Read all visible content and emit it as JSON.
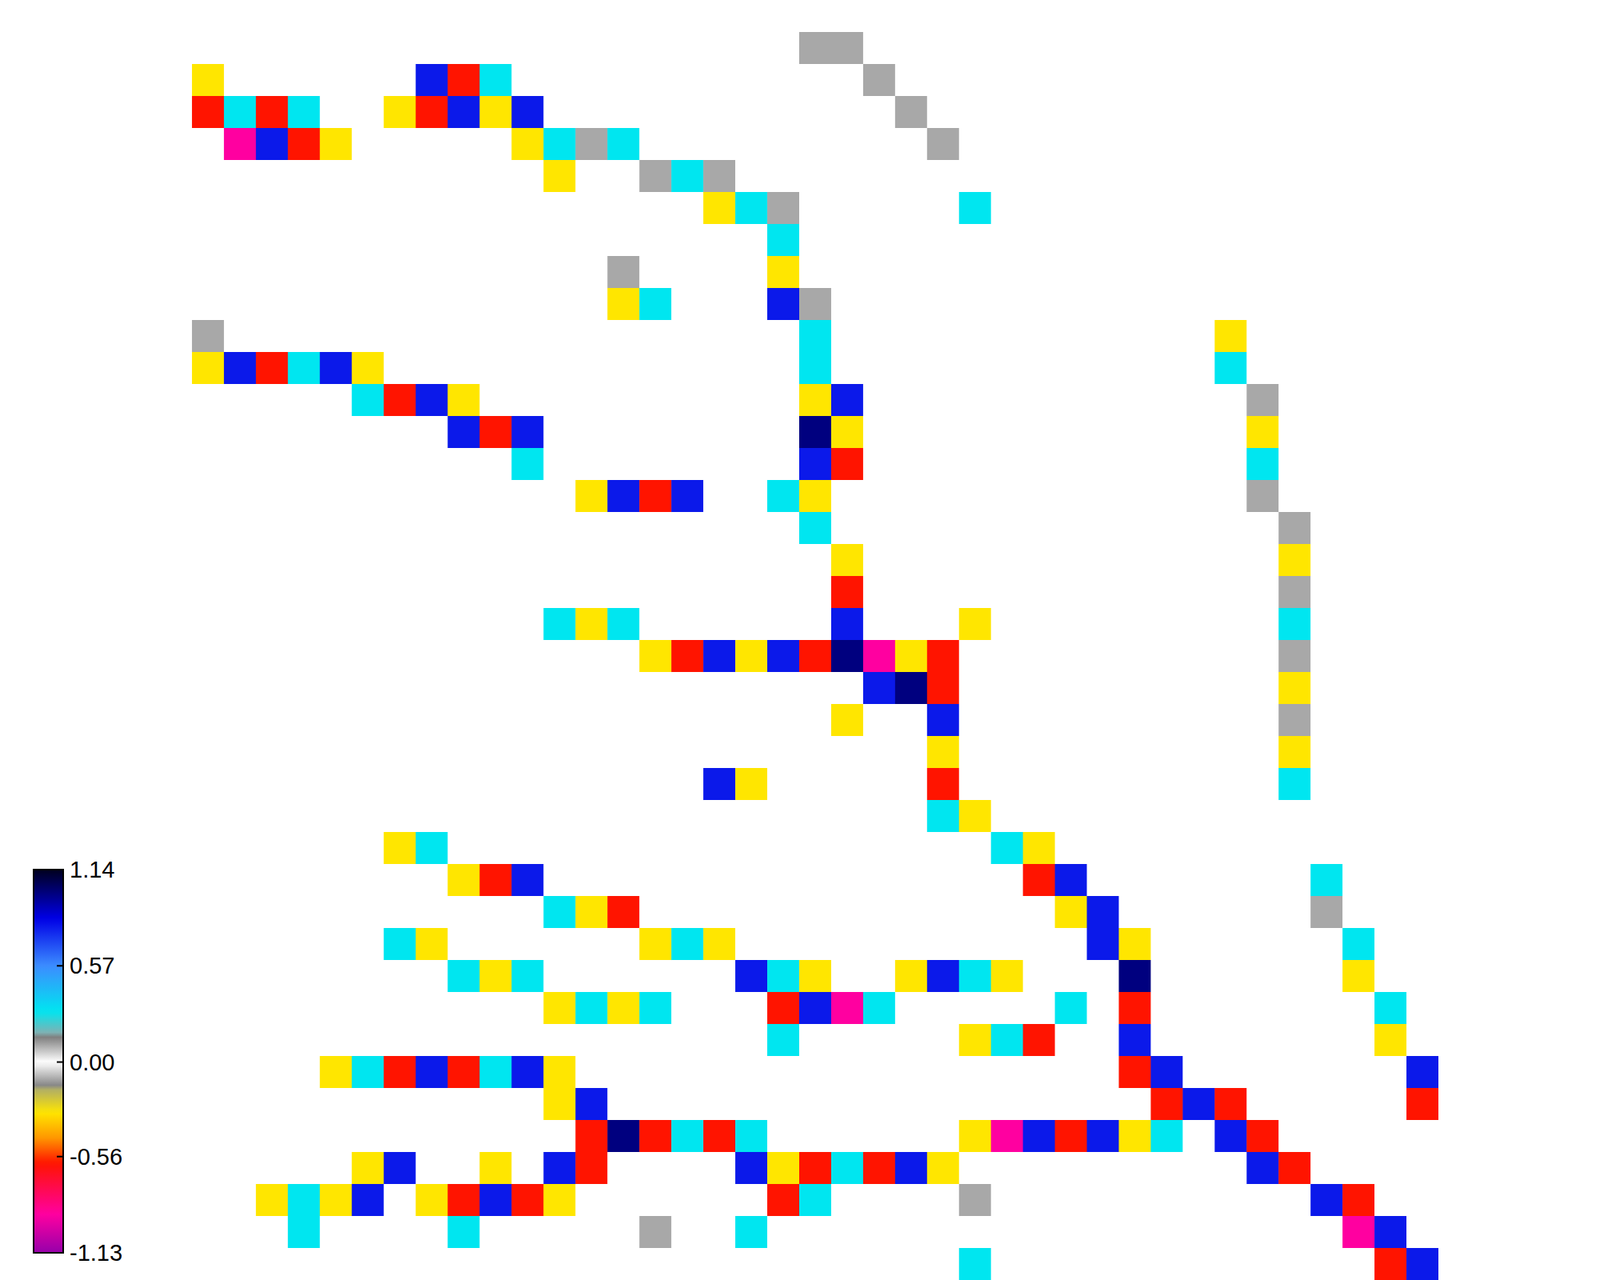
{
  "chart_data": {
    "type": "heatmap",
    "tick_labels": false,
    "colorbar_range": [
      -1.13,
      1.14
    ],
    "colorbar_ticks": [
      1.14,
      0.57,
      {
        "value": 0,
        "label": "0.00"
      },
      -0.56,
      -1.13
    ],
    "cells": [
      [
        0,
        0,
        0,
        0,
        0,
        0,
        0,
        0,
        0,
        0,
        0,
        0,
        0,
        0,
        0,
        0,
        0,
        0,
        0,
        0,
        0,
        0,
        0,
        0,
        0,
        0,
        0,
        0,
        0,
        0,
        0,
        0,
        0,
        0,
        0,
        0,
        0,
        0,
        0,
        0
      ],
      [
        0,
        0,
        0,
        0,
        0,
        0,
        0,
        0,
        0,
        0,
        0,
        0,
        0,
        0,
        0,
        0,
        0,
        0,
        0,
        0,
        0.1,
        0.1,
        0,
        0,
        0,
        0,
        0,
        0,
        0,
        0,
        0,
        0,
        0,
        0,
        0,
        0,
        0,
        0,
        0,
        0
      ],
      [
        0,
        -0.3,
        0,
        0,
        0,
        0,
        0,
        0,
        0.8,
        -0.6,
        0.3,
        0,
        0,
        0,
        0,
        0,
        0,
        0,
        0,
        0,
        0,
        0,
        0.1,
        0,
        0,
        0,
        0,
        0,
        0,
        0,
        0,
        0,
        0,
        0,
        0,
        0,
        0,
        0,
        0,
        0
      ],
      [
        0,
        -0.6,
        0.3,
        -0.6,
        0.3,
        0,
        0,
        -0.3,
        -0.6,
        0.8,
        -0.3,
        0.8,
        0,
        0,
        0,
        0,
        0,
        0,
        0,
        0,
        0,
        0,
        0,
        0.1,
        0,
        0,
        0,
        0,
        0,
        0,
        0,
        0,
        0,
        0,
        0,
        0,
        0,
        0,
        0,
        0
      ],
      [
        0,
        0,
        -0.9,
        0.8,
        -0.6,
        -0.3,
        0,
        0,
        0,
        0,
        0,
        -0.3,
        0.3,
        0.1,
        0.3,
        0,
        0,
        0,
        0,
        0,
        0,
        0,
        0,
        0,
        0.1,
        0,
        0,
        0,
        0,
        0,
        0,
        0,
        0,
        0,
        0,
        0,
        0,
        0,
        0,
        0
      ],
      [
        0,
        0,
        0,
        0,
        0,
        0,
        0,
        0,
        0,
        0,
        0,
        0,
        -0.3,
        0,
        0,
        0.1,
        0.3,
        0.1,
        0,
        0,
        0,
        0,
        0,
        0,
        0,
        0,
        0,
        0,
        0,
        0,
        0,
        0,
        0,
        0,
        0,
        0,
        0,
        0,
        0,
        0
      ],
      [
        0,
        0,
        0,
        0,
        0,
        0,
        0,
        0,
        0,
        0,
        0,
        0,
        0,
        0,
        0,
        0,
        0,
        -0.3,
        0.3,
        0.1,
        0,
        0,
        0,
        0,
        0,
        0.3,
        0,
        0,
        0,
        0,
        0,
        0,
        0,
        0,
        0,
        0,
        0,
        0,
        0,
        0
      ],
      [
        0,
        0,
        0,
        0,
        0,
        0,
        0,
        0,
        0,
        0,
        0,
        0,
        0,
        0,
        0,
        0,
        0,
        0,
        0,
        0.3,
        0,
        0,
        0,
        0,
        0,
        0,
        0,
        0,
        0,
        0,
        0,
        0,
        0,
        0,
        0,
        0,
        0,
        0,
        0,
        0
      ],
      [
        0,
        0,
        0,
        0,
        0,
        0,
        0,
        0,
        0,
        0,
        0,
        0,
        0,
        0,
        0.1,
        0,
        0,
        0,
        0,
        -0.3,
        0,
        0,
        0,
        0,
        0,
        0,
        0,
        0,
        0,
        0,
        0,
        0,
        0,
        0,
        0,
        0,
        0,
        0,
        0,
        0
      ],
      [
        0,
        0,
        0,
        0,
        0,
        0,
        0,
        0,
        0,
        0,
        0,
        0,
        0,
        0,
        -0.3,
        0.3,
        0,
        0,
        0,
        0.8,
        0.1,
        0,
        0,
        0,
        0,
        0,
        0,
        0,
        0,
        0,
        0,
        0,
        0,
        0,
        0,
        0,
        0,
        0,
        0,
        0
      ],
      [
        0,
        0.1,
        0,
        0,
        0,
        0,
        0,
        0,
        0,
        0,
        0,
        0,
        0,
        0,
        0,
        0,
        0,
        0,
        0,
        0,
        0.3,
        0,
        0,
        0,
        0,
        0,
        0,
        0,
        0,
        0,
        0,
        0,
        0,
        -0.3,
        0,
        0,
        0,
        0,
        0,
        0
      ],
      [
        0,
        -0.3,
        0.8,
        -0.6,
        0.3,
        0.8,
        -0.3,
        0,
        0,
        0,
        0,
        0,
        0,
        0,
        0,
        0,
        0,
        0,
        0,
        0,
        0.3,
        0,
        0,
        0,
        0,
        0,
        0,
        0,
        0,
        0,
        0,
        0,
        0,
        0.3,
        0,
        0,
        0,
        0,
        0,
        0
      ],
      [
        0,
        0,
        0,
        0,
        0,
        0,
        0.3,
        -0.6,
        0.8,
        -0.3,
        0,
        0,
        0,
        0,
        0,
        0,
        0,
        0,
        0,
        0,
        -0.3,
        0.8,
        0,
        0,
        0,
        0,
        0,
        0,
        0,
        0,
        0,
        0,
        0,
        0,
        0.1,
        0,
        0,
        0,
        0,
        0
      ],
      [
        0,
        0,
        0,
        0,
        0,
        0,
        0,
        0,
        0,
        0.8,
        -0.6,
        0.8,
        0,
        0,
        0,
        0,
        0,
        0,
        0,
        0,
        1,
        -0.3,
        0,
        0,
        0,
        0,
        0,
        0,
        0,
        0,
        0,
        0,
        0,
        0,
        -0.3,
        0,
        0,
        0,
        0,
        0
      ],
      [
        0,
        0,
        0,
        0,
        0,
        0,
        0,
        0,
        0,
        0,
        0,
        0.3,
        0,
        0,
        0,
        0,
        0,
        0,
        0,
        0,
        0.8,
        -0.6,
        0,
        0,
        0,
        0,
        0,
        0,
        0,
        0,
        0,
        0,
        0,
        0,
        0.3,
        0,
        0,
        0,
        0,
        0
      ],
      [
        0,
        0,
        0,
        0,
        0,
        0,
        0,
        0,
        0,
        0,
        0,
        0,
        0,
        -0.3,
        0.8,
        -0.6,
        0.8,
        0,
        0,
        0.3,
        -0.3,
        0,
        0,
        0,
        0,
        0,
        0,
        0,
        0,
        0,
        0,
        0,
        0,
        0,
        0.1,
        0,
        0,
        0,
        0,
        0
      ],
      [
        0,
        0,
        0,
        0,
        0,
        0,
        0,
        0,
        0,
        0,
        0,
        0,
        0,
        0,
        0,
        0,
        0,
        0,
        0,
        0,
        0.3,
        0,
        0,
        0,
        0,
        0,
        0,
        0,
        0,
        0,
        0,
        0,
        0,
        0,
        0,
        0.1,
        0,
        0,
        0,
        0
      ],
      [
        0,
        0,
        0,
        0,
        0,
        0,
        0,
        0,
        0,
        0,
        0,
        0,
        0,
        0,
        0,
        0,
        0,
        0,
        0,
        0,
        0,
        -0.3,
        0,
        0,
        0,
        0,
        0,
        0,
        0,
        0,
        0,
        0,
        0,
        0,
        0,
        -0.3,
        0,
        0,
        0,
        0
      ],
      [
        0,
        0,
        0,
        0,
        0,
        0,
        0,
        0,
        0,
        0,
        0,
        0,
        0,
        0,
        0,
        0,
        0,
        0,
        0,
        0,
        0,
        -0.6,
        0,
        0,
        0,
        0,
        0,
        0,
        0,
        0,
        0,
        0,
        0,
        0,
        0,
        0.1,
        0,
        0,
        0,
        0
      ],
      [
        0,
        0,
        0,
        0,
        0,
        0,
        0,
        0,
        0,
        0,
        0,
        0,
        0.3,
        -0.3,
        0.3,
        0,
        0,
        0,
        0,
        0,
        0,
        0.8,
        0,
        0,
        0,
        -0.3,
        0,
        0,
        0,
        0,
        0,
        0,
        0,
        0,
        0,
        0.3,
        0,
        0,
        0,
        0
      ],
      [
        0,
        0,
        0,
        0,
        0,
        0,
        0,
        0,
        0,
        0,
        0,
        0,
        0,
        0,
        0,
        -0.3,
        -0.6,
        0.8,
        -0.3,
        0.8,
        -0.6,
        1,
        -0.9,
        -0.3,
        -0.6,
        0,
        0,
        0,
        0,
        0,
        0,
        0,
        0,
        0,
        0,
        0.1,
        0,
        0,
        0,
        0
      ],
      [
        0,
        0,
        0,
        0,
        0,
        0,
        0,
        0,
        0,
        0,
        0,
        0,
        0,
        0,
        0,
        0,
        0,
        0,
        0,
        0,
        0,
        0,
        0.8,
        1,
        -0.6,
        0,
        0,
        0,
        0,
        0,
        0,
        0,
        0,
        0,
        0,
        -0.3,
        0,
        0,
        0,
        0
      ],
      [
        0,
        0,
        0,
        0,
        0,
        0,
        0,
        0,
        0,
        0,
        0,
        0,
        0,
        0,
        0,
        0,
        0,
        0,
        0,
        0,
        0,
        -0.3,
        0,
        0,
        0.8,
        0,
        0,
        0,
        0,
        0,
        0,
        0,
        0,
        0,
        0,
        0.1,
        0,
        0,
        0,
        0
      ],
      [
        0,
        0,
        0,
        0,
        0,
        0,
        0,
        0,
        0,
        0,
        0,
        0,
        0,
        0,
        0,
        0,
        0,
        0,
        0,
        0,
        0,
        0,
        0,
        0,
        -0.3,
        0,
        0,
        0,
        0,
        0,
        0,
        0,
        0,
        0,
        0,
        -0.3,
        0,
        0,
        0,
        0
      ],
      [
        0,
        0,
        0,
        0,
        0,
        0,
        0,
        0,
        0,
        0,
        0,
        0,
        0,
        0,
        0,
        0,
        0,
        0.8,
        -0.3,
        0,
        0,
        0,
        0,
        0,
        -0.6,
        0,
        0,
        0,
        0,
        0,
        0,
        0,
        0,
        0,
        0,
        0.3,
        0,
        0,
        0,
        0
      ],
      [
        0,
        0,
        0,
        0,
        0,
        0,
        0,
        0,
        0,
        0,
        0,
        0,
        0,
        0,
        0,
        0,
        0,
        0,
        0,
        0,
        0,
        0,
        0,
        0,
        0.3,
        -0.3,
        0,
        0,
        0,
        0,
        0,
        0,
        0,
        0,
        0,
        0,
        0,
        0,
        0,
        0
      ],
      [
        0,
        0,
        0,
        0,
        0,
        0,
        0,
        -0.3,
        0.3,
        0,
        0,
        0,
        0,
        0,
        0,
        0,
        0,
        0,
        0,
        0,
        0,
        0,
        0,
        0,
        0,
        0,
        0.3,
        -0.3,
        0,
        0,
        0,
        0,
        0,
        0,
        0,
        0,
        0,
        0,
        0,
        0
      ],
      [
        0,
        0,
        0,
        0,
        0,
        0,
        0,
        0,
        0,
        -0.3,
        -0.6,
        0.8,
        0,
        0,
        0,
        0,
        0,
        0,
        0,
        0,
        0,
        0,
        0,
        0,
        0,
        0,
        0,
        -0.6,
        0.8,
        0,
        0,
        0,
        0,
        0,
        0,
        0,
        0.3,
        0,
        0,
        0
      ],
      [
        0,
        0,
        0,
        0,
        0,
        0,
        0,
        0,
        0,
        0,
        0,
        0,
        0.3,
        -0.3,
        -0.6,
        0,
        0,
        0,
        0,
        0,
        0,
        0,
        0,
        0,
        0,
        0,
        0,
        0,
        -0.3,
        0.8,
        0,
        0,
        0,
        0,
        0,
        0,
        0.1,
        0,
        0,
        0
      ],
      [
        0,
        0,
        0,
        0,
        0,
        0,
        0,
        0.3,
        -0.3,
        0,
        0,
        0,
        0,
        0,
        0,
        -0.3,
        0.3,
        -0.3,
        0,
        0,
        0,
        0,
        0,
        0,
        0,
        0,
        0,
        0,
        0,
        0.8,
        -0.3,
        0,
        0,
        0,
        0,
        0,
        0,
        0.3,
        0,
        0
      ],
      [
        0,
        0,
        0,
        0,
        0,
        0,
        0,
        0,
        0,
        0.3,
        -0.3,
        0.3,
        0,
        0,
        0,
        0,
        0,
        0,
        0.8,
        0.3,
        -0.3,
        0,
        0,
        -0.3,
        0.8,
        0.3,
        -0.3,
        0,
        0,
        0,
        1,
        0,
        0,
        0,
        0,
        0,
        0,
        -0.3,
        0,
        0
      ],
      [
        0,
        0,
        0,
        0,
        0,
        0,
        0,
        0,
        0,
        0,
        0,
        0,
        -0.3,
        0.3,
        -0.3,
        0.3,
        0,
        0,
        0,
        -0.6,
        0.8,
        -0.9,
        0.3,
        0,
        0,
        0,
        0,
        0,
        0.3,
        0,
        -0.6,
        0,
        0,
        0,
        0,
        0,
        0,
        0,
        0.3,
        0
      ],
      [
        0,
        0,
        0,
        0,
        0,
        0,
        0,
        0,
        0,
        0,
        0,
        0,
        0,
        0,
        0,
        0,
        0,
        0,
        0,
        0.3,
        0,
        0,
        0,
        0,
        0,
        -0.3,
        0.3,
        -0.6,
        0,
        0,
        0.8,
        0,
        0,
        0,
        0,
        0,
        0,
        0,
        -0.3,
        0
      ],
      [
        0,
        0,
        0,
        0,
        0,
        -0.3,
        0.3,
        -0.6,
        0.8,
        -0.6,
        0.3,
        0.8,
        -0.3,
        0,
        0,
        0,
        0,
        0,
        0,
        0,
        0,
        0,
        0,
        0,
        0,
        0,
        0,
        0,
        0,
        0,
        -0.6,
        0.8,
        0,
        0,
        0,
        0,
        0,
        0,
        0,
        0.8
      ],
      [
        0,
        0,
        0,
        0,
        0,
        0,
        0,
        0,
        0,
        0,
        0,
        0,
        -0.3,
        0.8,
        0,
        0,
        0,
        0,
        0,
        0,
        0,
        0,
        0,
        0,
        0,
        0,
        0,
        0,
        0,
        0,
        0,
        -0.6,
        0.8,
        -0.6,
        0,
        0,
        0,
        0,
        0,
        -0.6
      ],
      [
        0,
        0,
        0,
        0,
        0,
        0,
        0,
        0,
        0,
        0,
        0,
        0,
        0,
        -0.6,
        1,
        -0.6,
        0.3,
        -0.6,
        0.3,
        0,
        0,
        0,
        0,
        0,
        0,
        -0.3,
        -0.9,
        0.8,
        -0.6,
        0.8,
        -0.3,
        0.3,
        0,
        0.8,
        -0.6,
        0,
        0,
        0,
        0,
        0
      ],
      [
        0,
        0,
        0,
        0,
        0,
        0,
        -0.3,
        0.8,
        0,
        0,
        -0.3,
        0,
        0.8,
        -0.6,
        0,
        0,
        0,
        0,
        0.8,
        -0.3,
        -0.6,
        0.3,
        -0.6,
        0.8,
        -0.3,
        0,
        0,
        0,
        0,
        0,
        0,
        0,
        0,
        0,
        0.8,
        -0.6,
        0,
        0,
        0,
        0
      ],
      [
        0,
        0,
        0,
        -0.3,
        0.3,
        -0.3,
        0.8,
        0,
        -0.3,
        -0.6,
        0.8,
        -0.6,
        -0.3,
        0,
        0,
        0,
        0,
        0,
        0,
        -0.6,
        0.3,
        0,
        0,
        0,
        0,
        0.1,
        0,
        0,
        0,
        0,
        0,
        0,
        0,
        0,
        0,
        0,
        0.8,
        -0.6,
        0,
        0
      ],
      [
        0,
        0,
        0,
        0,
        0.3,
        0,
        0,
        0,
        0,
        0.3,
        0,
        0,
        0,
        0,
        0,
        0.1,
        0,
        0,
        0.3,
        0,
        0,
        0,
        0,
        0,
        0,
        0,
        0,
        0,
        0,
        0,
        0,
        0,
        0,
        0,
        0,
        0,
        0,
        -0.9,
        0.8,
        0
      ],
      [
        0,
        0,
        0,
        0,
        0,
        0,
        0,
        0,
        0,
        0,
        0,
        0,
        0,
        0,
        0,
        0,
        0,
        0,
        0,
        0,
        0,
        0,
        0,
        0,
        0,
        0.3,
        0,
        0,
        0,
        0,
        0,
        0,
        0,
        0,
        0,
        0,
        0,
        0,
        -0.6,
        0.8
      ]
    ]
  }
}
